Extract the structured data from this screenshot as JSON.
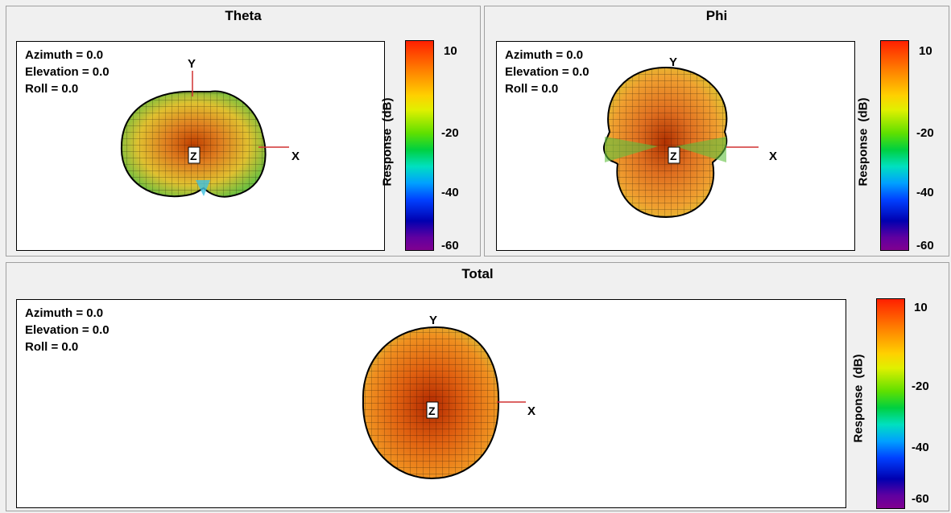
{
  "panels": [
    {
      "id": "theta",
      "title": "Theta",
      "azimuth": "Azimuth = 0.0",
      "elevation": "Elevation = 0.0",
      "roll": "Roll = 0.0",
      "axes": {
        "x": "X",
        "y": "Y",
        "z": "Z"
      },
      "colorbar": {
        "label": "Response  (dB)",
        "ticks": [
          "10",
          "-20",
          "-40",
          "-60"
        ]
      }
    },
    {
      "id": "phi",
      "title": "Phi",
      "azimuth": "Azimuth = 0.0",
      "elevation": "Elevation = 0.0",
      "roll": "Roll = 0.0",
      "axes": {
        "x": "X",
        "y": "Y",
        "z": "Z"
      },
      "colorbar": {
        "label": "Response  (dB)",
        "ticks": [
          "10",
          "-20",
          "-40",
          "-60"
        ]
      }
    },
    {
      "id": "total",
      "title": "Total",
      "azimuth": "Azimuth = 0.0",
      "elevation": "Elevation = 0.0",
      "roll": "Roll = 0.0",
      "axes": {
        "x": "X",
        "y": "Y",
        "z": "Z"
      },
      "colorbar": {
        "label": "Response  (dB)",
        "ticks": [
          "10",
          "-20",
          "-40",
          "-60"
        ]
      }
    }
  ],
  "chart_data": [
    {
      "type": "surface-3d-pattern",
      "title": "Theta",
      "colorbar_label": "Response  (dB)",
      "colorbar_ticks": [
        10,
        -20,
        -40,
        -60
      ],
      "color_range": [
        -60,
        10
      ],
      "view": {
        "azimuth": 0.0,
        "elevation": 0.0,
        "roll": 0.0
      },
      "pattern_shape": "two-lobe (left/right)",
      "colors": {
        "body": "#e0a020",
        "edge": "#60c040",
        "null": "#40c0e0"
      }
    },
    {
      "type": "surface-3d-pattern",
      "title": "Phi",
      "colorbar_label": "Response  (dB)",
      "colorbar_ticks": [
        10,
        -20,
        -40,
        -60
      ],
      "color_range": [
        -60,
        10
      ],
      "view": {
        "azimuth": 0.0,
        "elevation": 0.0,
        "roll": 0.0
      },
      "pattern_shape": "two-lobe (top/bottom)",
      "colors": {
        "body": "#f08020",
        "edge": "#70c030",
        "null": "#60c040"
      }
    },
    {
      "type": "surface-3d-pattern",
      "title": "Total",
      "colorbar_label": "Response  (dB)",
      "colorbar_ticks": [
        10,
        -20,
        -40,
        -60
      ],
      "color_range": [
        -60,
        10
      ],
      "view": {
        "azimuth": 0.0,
        "elevation": 0.0,
        "roll": 0.0
      },
      "pattern_shape": "near-omni",
      "colors": {
        "body": "#f07010",
        "edge": "#e0a020",
        "null": "#e09020"
      }
    }
  ]
}
